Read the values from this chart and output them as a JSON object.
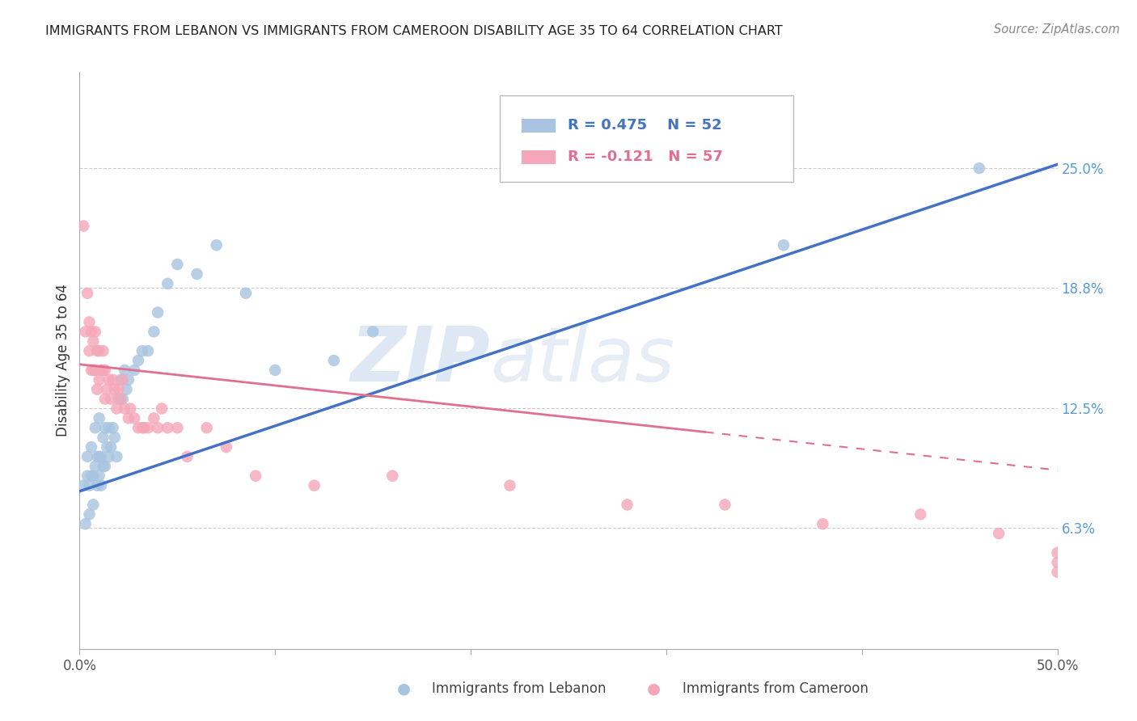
{
  "title": "IMMIGRANTS FROM LEBANON VS IMMIGRANTS FROM CAMEROON DISABILITY AGE 35 TO 64 CORRELATION CHART",
  "source": "Source: ZipAtlas.com",
  "ylabel_label": "Disability Age 35 to 64",
  "x_min": 0.0,
  "x_max": 0.5,
  "y_min": 0.0,
  "y_max": 0.3,
  "x_ticks": [
    0.0,
    0.1,
    0.2,
    0.3,
    0.4,
    0.5
  ],
  "x_tick_labels": [
    "0.0%",
    "",
    "",
    "",
    "",
    "50.0%"
  ],
  "y_tick_labels_right": [
    "25.0%",
    "18.8%",
    "12.5%",
    "6.3%"
  ],
  "y_tick_vals_right": [
    0.25,
    0.188,
    0.125,
    0.063
  ],
  "lebanon_color": "#a8c4e0",
  "cameroon_color": "#f4a7b9",
  "lebanon_line_color": "#4472c4",
  "cameroon_line_color": "#e07090",
  "legend_R_lebanon": "R = 0.475",
  "legend_N_lebanon": "N = 52",
  "legend_R_cameroon": "R = -0.121",
  "legend_N_cameroon": "N = 57",
  "legend_label_lebanon": "Immigrants from Lebanon",
  "legend_label_cameroon": "Immigrants from Cameroon",
  "watermark_zip": "ZIP",
  "watermark_atlas": "atlas",
  "background_color": "#ffffff",
  "grid_color": "#cccccc",
  "title_color": "#222222",
  "right_label_color": "#5b9bd5",
  "lebanon_scatter_x": [
    0.002,
    0.003,
    0.004,
    0.004,
    0.005,
    0.005,
    0.006,
    0.006,
    0.007,
    0.007,
    0.008,
    0.008,
    0.009,
    0.009,
    0.01,
    0.01,
    0.01,
    0.011,
    0.011,
    0.012,
    0.012,
    0.013,
    0.013,
    0.014,
    0.015,
    0.015,
    0.016,
    0.017,
    0.018,
    0.019,
    0.02,
    0.021,
    0.022,
    0.023,
    0.024,
    0.025,
    0.028,
    0.03,
    0.032,
    0.035,
    0.038,
    0.04,
    0.045,
    0.05,
    0.06,
    0.07,
    0.085,
    0.1,
    0.13,
    0.15,
    0.36,
    0.46
  ],
  "lebanon_scatter_y": [
    0.085,
    0.065,
    0.1,
    0.09,
    0.085,
    0.07,
    0.105,
    0.09,
    0.09,
    0.075,
    0.115,
    0.095,
    0.1,
    0.085,
    0.1,
    0.12,
    0.09,
    0.1,
    0.085,
    0.11,
    0.095,
    0.115,
    0.095,
    0.105,
    0.1,
    0.115,
    0.105,
    0.115,
    0.11,
    0.1,
    0.13,
    0.14,
    0.13,
    0.145,
    0.135,
    0.14,
    0.145,
    0.15,
    0.155,
    0.155,
    0.165,
    0.175,
    0.19,
    0.2,
    0.195,
    0.21,
    0.185,
    0.145,
    0.15,
    0.165,
    0.21,
    0.25
  ],
  "cameroon_scatter_x": [
    0.002,
    0.003,
    0.004,
    0.005,
    0.005,
    0.006,
    0.006,
    0.007,
    0.007,
    0.008,
    0.008,
    0.009,
    0.009,
    0.01,
    0.01,
    0.011,
    0.012,
    0.012,
    0.013,
    0.013,
    0.014,
    0.015,
    0.016,
    0.017,
    0.018,
    0.019,
    0.02,
    0.021,
    0.022,
    0.023,
    0.025,
    0.026,
    0.028,
    0.03,
    0.032,
    0.033,
    0.035,
    0.038,
    0.04,
    0.042,
    0.045,
    0.05,
    0.055,
    0.065,
    0.075,
    0.09,
    0.12,
    0.16,
    0.22,
    0.28,
    0.33,
    0.38,
    0.43,
    0.47,
    0.5,
    0.5,
    0.5
  ],
  "cameroon_scatter_y": [
    0.22,
    0.165,
    0.185,
    0.155,
    0.17,
    0.145,
    0.165,
    0.145,
    0.16,
    0.165,
    0.145,
    0.155,
    0.135,
    0.14,
    0.155,
    0.145,
    0.145,
    0.155,
    0.13,
    0.145,
    0.135,
    0.14,
    0.13,
    0.14,
    0.135,
    0.125,
    0.135,
    0.13,
    0.14,
    0.125,
    0.12,
    0.125,
    0.12,
    0.115,
    0.115,
    0.115,
    0.115,
    0.12,
    0.115,
    0.125,
    0.115,
    0.115,
    0.1,
    0.115,
    0.105,
    0.09,
    0.085,
    0.09,
    0.085,
    0.075,
    0.075,
    0.065,
    0.07,
    0.06,
    0.05,
    0.045,
    0.04
  ],
  "leb_line_x0": 0.0,
  "leb_line_x1": 0.5,
  "leb_line_y0": 0.082,
  "leb_line_y1": 0.252,
  "cam_line_x0": 0.0,
  "cam_line_x1": 0.5,
  "cam_line_y0": 0.148,
  "cam_line_y1": 0.093
}
